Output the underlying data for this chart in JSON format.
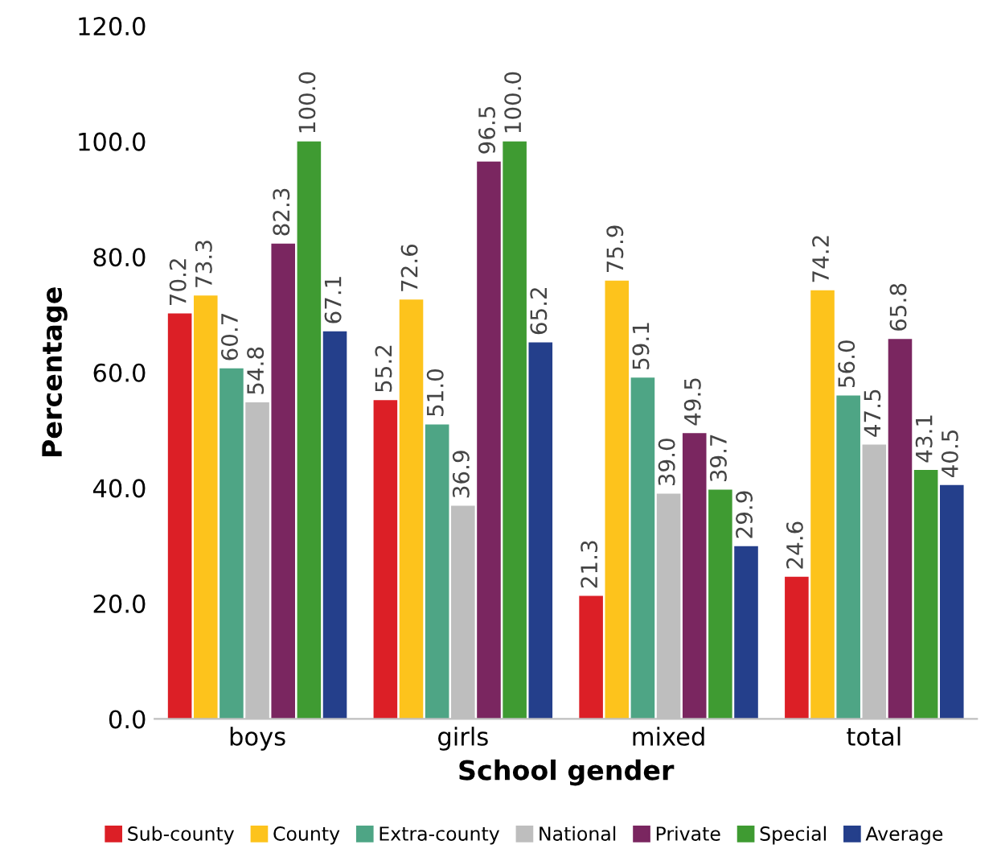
{
  "chart_data": {
    "type": "bar",
    "xlabel": "School gender",
    "ylabel": "Percentage",
    "categories": [
      "boys",
      "girls",
      "mixed",
      "total"
    ],
    "ylim": [
      0,
      120
    ],
    "yticks": [
      {
        "value": 0,
        "label": "0.0"
      },
      {
        "value": 20,
        "label": "20.0"
      },
      {
        "value": 40,
        "label": "40.0"
      },
      {
        "value": 60,
        "label": "60.0"
      },
      {
        "value": 80,
        "label": "80.0"
      },
      {
        "value": 100,
        "label": "100.0"
      },
      {
        "value": 120,
        "label": "120.0"
      }
    ],
    "grid": false,
    "legend": "bottom",
    "series": [
      {
        "name": "Sub-county",
        "color": "#dc1f26",
        "values": [
          70.2,
          55.2,
          21.3,
          24.6
        ],
        "value_labels": [
          "70.2",
          "55.2",
          "21.3",
          "24.6"
        ]
      },
      {
        "name": "County",
        "color": "#fdc31c",
        "values": [
          73.3,
          72.6,
          75.9,
          74.2
        ],
        "value_labels": [
          "73.3",
          "72.6",
          "75.9",
          "74.2"
        ]
      },
      {
        "name": "Extra-county",
        "color": "#4ea585",
        "values": [
          60.7,
          51.0,
          59.1,
          56.0
        ],
        "value_labels": [
          "60.7",
          "51.0",
          "59.1",
          "56.0"
        ]
      },
      {
        "name": "National",
        "color": "#bebebe",
        "values": [
          54.8,
          36.9,
          39.0,
          47.5
        ],
        "value_labels": [
          "54.8",
          "36.9",
          "39.0",
          "47.5"
        ]
      },
      {
        "name": "Private",
        "color": "#7a2660",
        "values": [
          82.3,
          96.5,
          49.5,
          65.8
        ],
        "value_labels": [
          "82.3",
          "96.5",
          "49.5",
          "65.8"
        ]
      },
      {
        "name": "Special",
        "color": "#3f9b32",
        "values": [
          100.0,
          100.0,
          39.7,
          43.1
        ],
        "value_labels": [
          "100.0",
          "100.0",
          "39.7",
          "43.1"
        ]
      },
      {
        "name": "Average",
        "color": "#243f8b",
        "values": [
          67.1,
          65.2,
          29.9,
          40.5
        ],
        "value_labels": [
          "67.1",
          "65.2",
          "29.9",
          "40.5"
        ]
      }
    ]
  }
}
